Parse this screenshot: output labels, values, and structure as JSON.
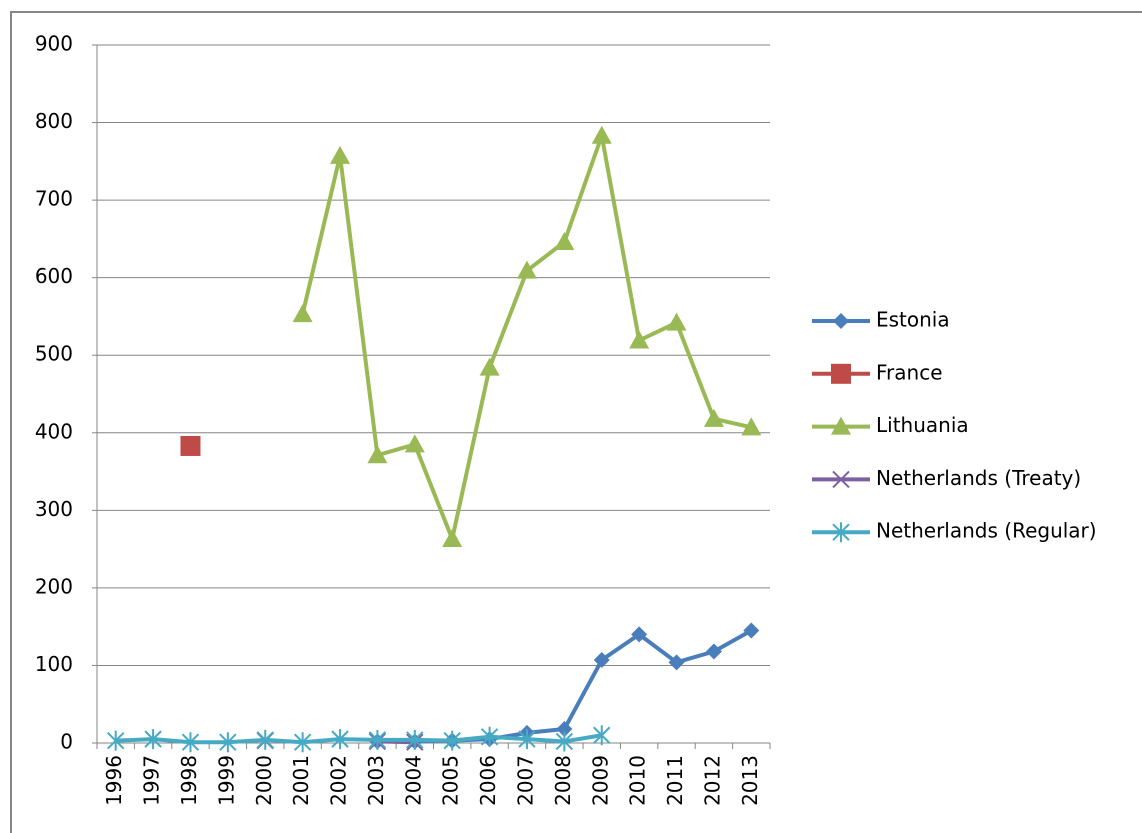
{
  "chart_data": {
    "type": "line",
    "categories": [
      "1996",
      "1997",
      "1998",
      "1999",
      "2000",
      "2001",
      "2002",
      "2003",
      "2004",
      "2005",
      "2006",
      "2007",
      "2008",
      "2009",
      "2010",
      "2011",
      "2012",
      "2013"
    ],
    "series": [
      {
        "name": "Estonia",
        "color": "#4a7ebb",
        "marker": "diamond",
        "values": [
          null,
          null,
          null,
          null,
          null,
          null,
          null,
          2,
          2,
          3,
          5,
          13,
          18,
          107,
          140,
          104,
          118,
          145
        ]
      },
      {
        "name": "France",
        "color": "#be4b48",
        "marker": "square",
        "values": [
          null,
          null,
          383,
          null,
          null,
          null,
          null,
          null,
          null,
          null,
          null,
          null,
          null,
          null,
          null,
          null,
          null,
          null
        ]
      },
      {
        "name": "Lithuania",
        "color": "#98b954",
        "marker": "triangle",
        "values": [
          null,
          null,
          null,
          null,
          null,
          553,
          757,
          371,
          385,
          263,
          484,
          609,
          646,
          783,
          519,
          542,
          418,
          407
        ]
      },
      {
        "name": "Netherlands (Treaty)",
        "color": "#7d60a0",
        "marker": "x",
        "values": [
          null,
          null,
          null,
          null,
          3,
          null,
          null,
          2,
          1,
          null,
          null,
          null,
          null,
          null,
          null,
          null,
          null,
          null
        ]
      },
      {
        "name": "Netherlands (Regular)",
        "color": "#46aac5",
        "marker": "asterisk",
        "values": [
          3,
          5,
          1,
          1,
          4,
          1,
          5,
          4,
          4,
          3,
          8,
          5,
          2,
          10,
          null,
          null,
          null,
          null
        ]
      }
    ],
    "ylim": [
      0,
      900
    ],
    "yticks": [
      0,
      100,
      200,
      300,
      400,
      500,
      600,
      700,
      800,
      900
    ],
    "grid": true,
    "legend": "right"
  }
}
